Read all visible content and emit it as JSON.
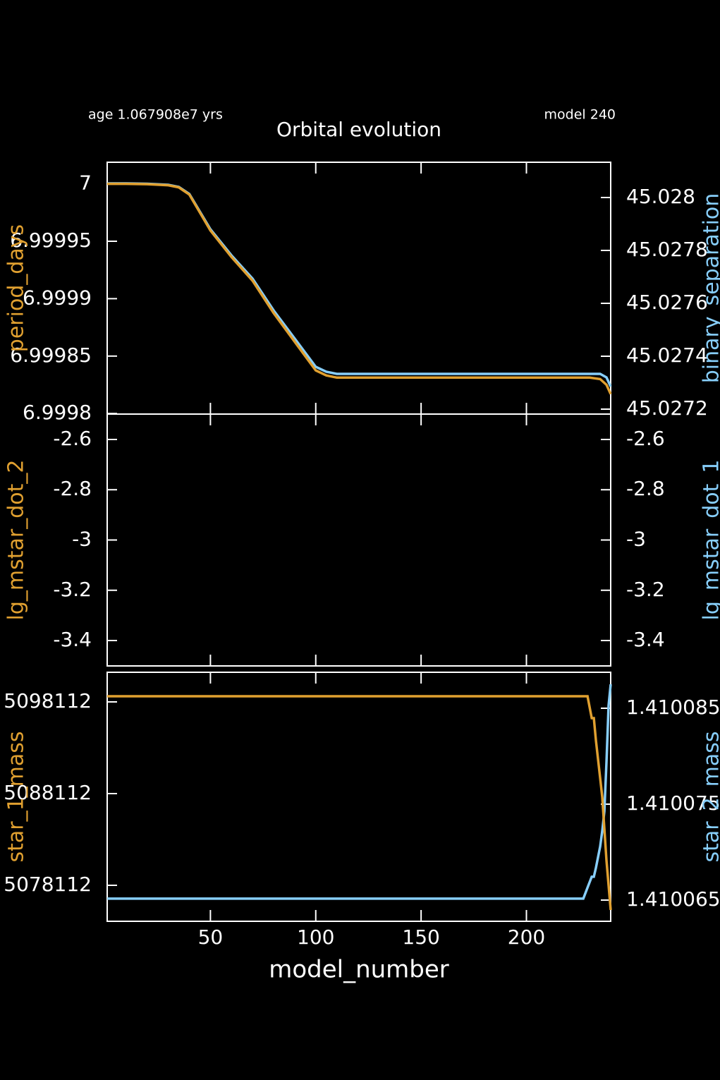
{
  "chart_data": [
    {
      "type": "line",
      "title": "Orbital evolution",
      "annotations": [
        "age 1.067908e7 yrs",
        "model 240"
      ],
      "ylabel": "period_days",
      "y2label": "binary_separation",
      "x": [
        1,
        10,
        20,
        30,
        35,
        40,
        45,
        50,
        60,
        70,
        80,
        90,
        100,
        105,
        110,
        150,
        200,
        230,
        235,
        238,
        240
      ],
      "xlim": [
        1,
        240
      ],
      "xticks": [
        50,
        100,
        150,
        200
      ],
      "ylim": [
        6.9997995,
        7.0000188
      ],
      "yticks": [
        6.9998,
        6.99985,
        6.9999,
        6.99995,
        7
      ],
      "y2lim": [
        45.0271813,
        45.0281333
      ],
      "y2ticks": [
        45.0272,
        45.0274,
        45.0276,
        45.0278,
        45.028
      ],
      "series": [
        {
          "name": "binary_separation",
          "color": "#87cefa",
          "axis": "y2",
          "values": [
            45.0280533,
            45.0280533,
            45.028052,
            45.028048,
            45.02804,
            45.0280133,
            45.0279467,
            45.02788,
            45.0277813,
            45.0276933,
            45.0275733,
            45.0274667,
            45.02736,
            45.0273413,
            45.0273333,
            45.0273333,
            45.0273333,
            45.0273333,
            45.0273333,
            45.02732,
            45.0272853
          ]
        },
        {
          "name": "period_days",
          "color": "#e0a030",
          "values": [
            7,
            7,
            6.9999997,
            6.99999875,
            6.99999688,
            6.99999063,
            6.999975,
            6.99995938,
            6.99993625,
            6.99991563,
            6.9998875,
            6.9998625,
            6.9998375,
            6.99983313,
            6.99983125,
            6.99983125,
            6.99983125,
            6.99983125,
            6.99983,
            6.999825,
            6.99981688
          ]
        }
      ]
    },
    {
      "type": "line",
      "ylabel": "lg_mstar_dot_2",
      "y2label": "lg_mstar_dot_1",
      "xlim": [
        1,
        240
      ],
      "xticks": [
        50,
        100,
        150,
        200
      ],
      "ylim": [
        -3.501,
        -2.499
      ],
      "yticks": [
        -3.4,
        -3.2,
        -3,
        -2.8,
        -2.6
      ],
      "y2lim": [
        -3.501,
        -2.499
      ],
      "y2ticks": [
        -3.4,
        -3.2,
        -3,
        -2.8,
        -2.6
      ]
    },
    {
      "type": "line",
      "ylabel": "star_1_mass",
      "y2label": "star_2_mass",
      "xlabel": "model_number",
      "x": [
        1,
        227,
        229,
        231,
        232,
        233,
        235,
        236,
        237,
        238,
        239,
        240
      ],
      "xlim": [
        1,
        240
      ],
      "xticks": [
        50,
        100,
        150,
        200
      ],
      "ylim": [
        5074189,
        5101343
      ],
      "yticks": [
        5078112,
        5088112,
        5098112
      ],
      "y2lim": [
        1.41006279,
        1.41008875
      ],
      "y2ticks": [
        1.410065,
        1.410075,
        1.410085
      ],
      "series": [
        {
          "name": "star_2_mass",
          "color": "#87cefa",
          "axis": "y2",
          "values": [
            1.41006515,
            1.41006515,
            1.4100663,
            1.41006743,
            1.41006743,
            1.41006838,
            1.41007059,
            1.41007221,
            1.41007426,
            1.41007941,
            1.41008529,
            1.4100875
          ]
        },
        {
          "name": "star_1_mass",
          "color": "#e0a030",
          "values": [
            5098727,
            5098727,
            5098727,
            5096343,
            5096343,
            5093881,
            5089804,
            5087727,
            5084266,
            5080804,
            5078112,
            5075419
          ]
        }
      ]
    }
  ]
}
